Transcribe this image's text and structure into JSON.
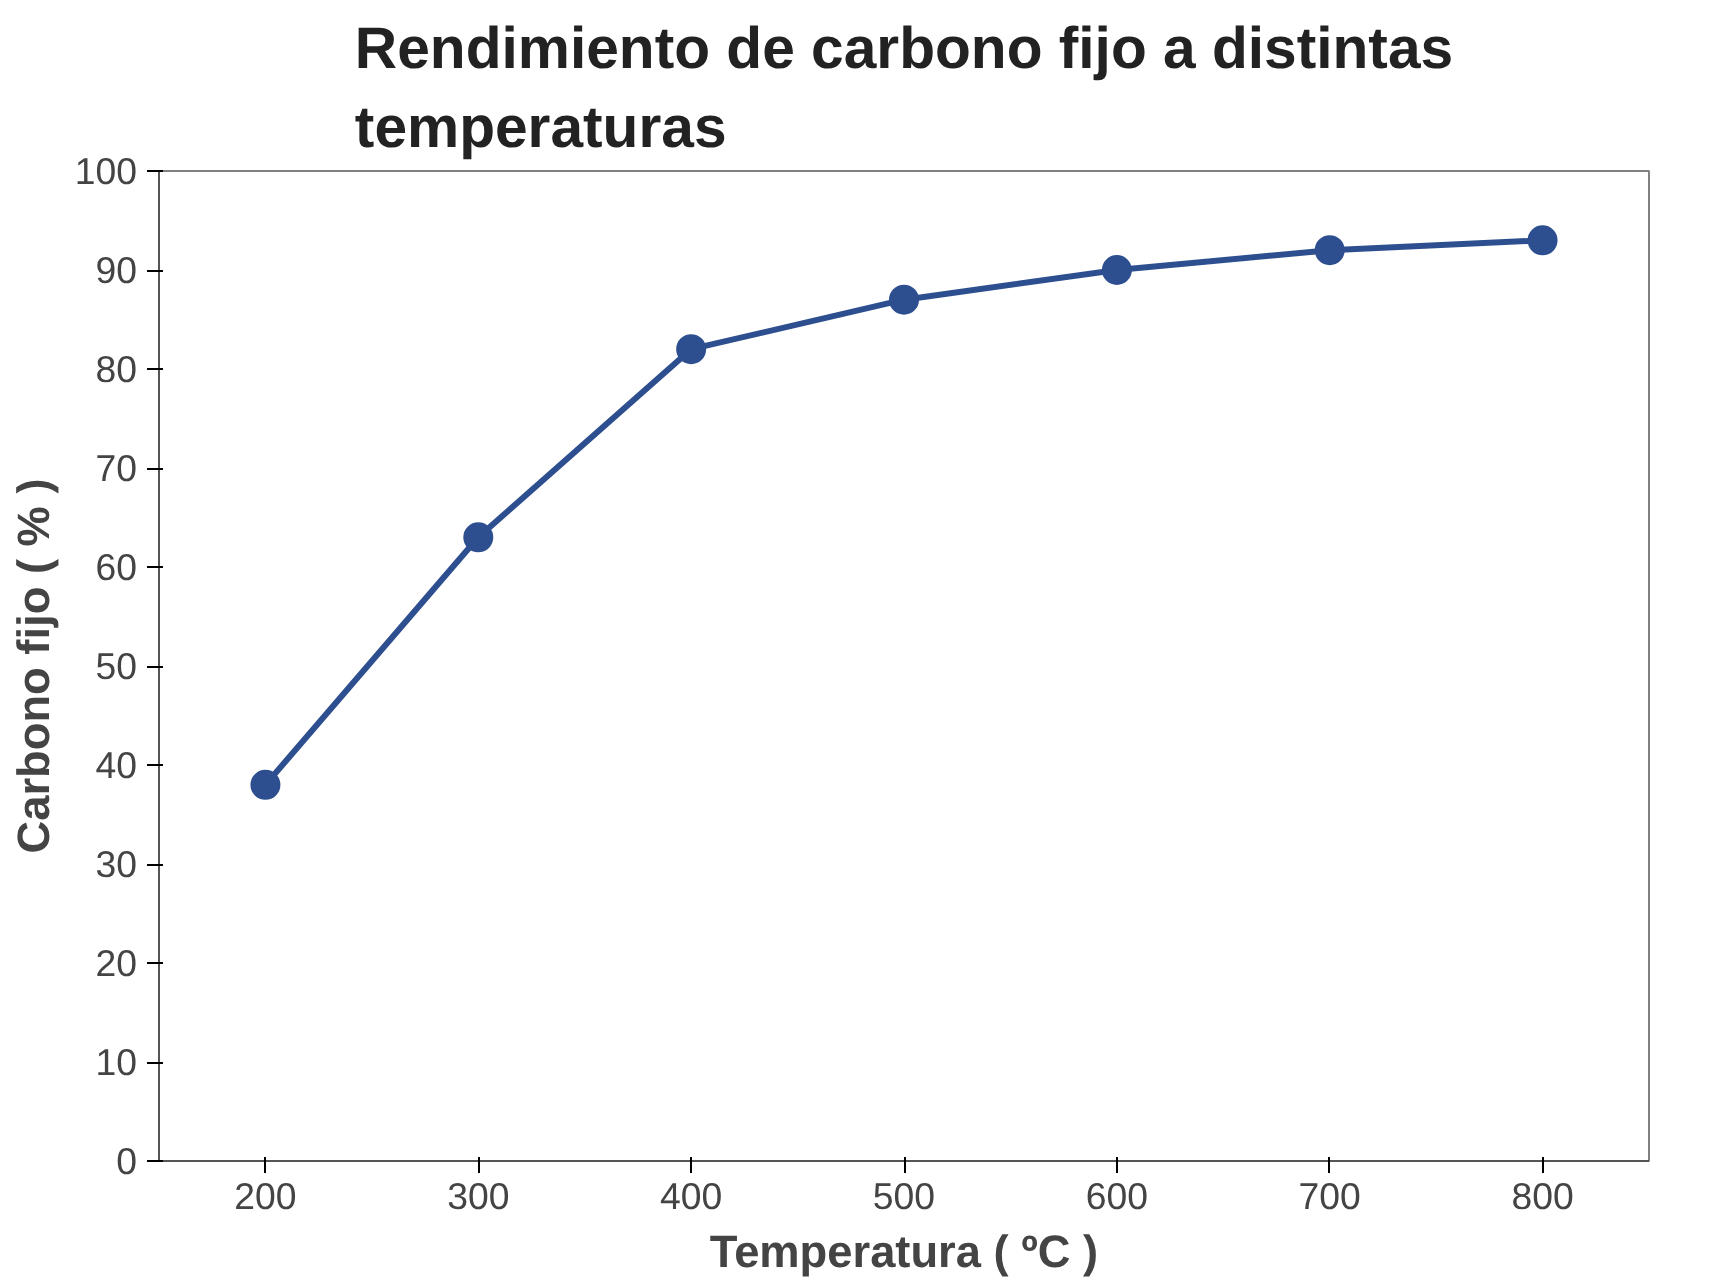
{
  "chart_data": {
    "type": "line",
    "title": "Rendimiento de carbono fijo a distintas\ntemperaturas",
    "xlabel": "Temperatura ( ºC )",
    "ylabel": "Carbono fijo ( % )",
    "categories": [
      "200",
      "300",
      "400",
      "500",
      "600",
      "700",
      "800"
    ],
    "series": [
      {
        "color": "#2e4f8f",
        "values": [
          38,
          63,
          82,
          87,
          90,
          92,
          93
        ]
      }
    ],
    "ylim": [
      0,
      100
    ],
    "yticks": [
      0,
      10,
      20,
      30,
      40,
      50,
      60,
      70,
      80,
      90,
      100
    ],
    "grid": false,
    "marker": "circle",
    "line_style": "solid"
  }
}
